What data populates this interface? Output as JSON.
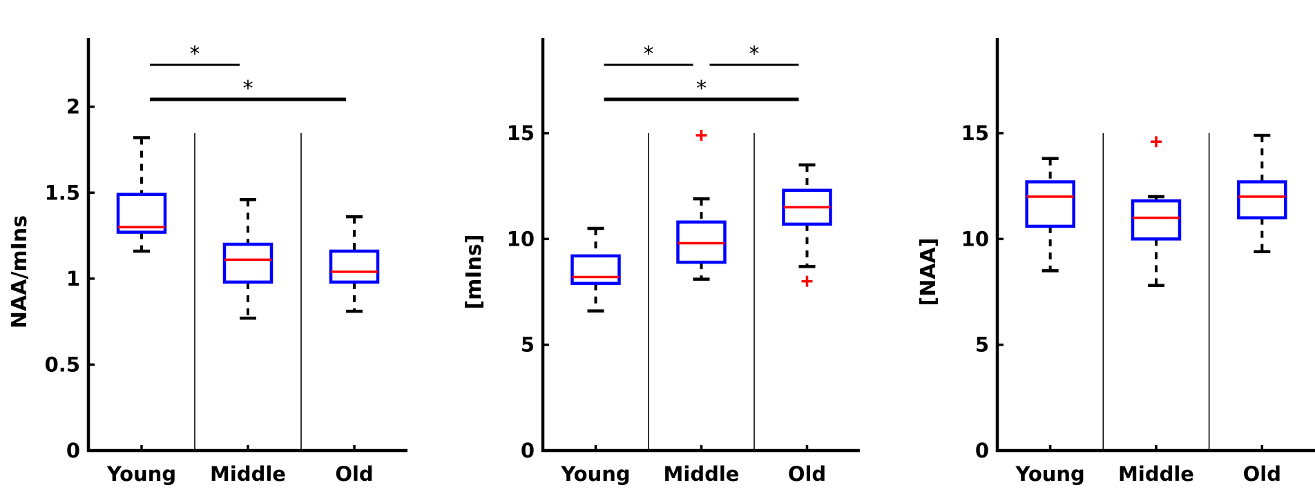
{
  "chart_data": [
    {
      "type": "box",
      "ylabel": "NAA/mIns",
      "ylim": [
        0,
        2.4
      ],
      "yticks": [
        0,
        0.5,
        1,
        1.5,
        2
      ],
      "ytick_labels": [
        "0",
        "0.5",
        "1",
        "1.5",
        "2"
      ],
      "categories": [
        "Young",
        "Middle",
        "Old"
      ],
      "boxes": [
        {
          "group": "Young",
          "whisker_low": 1.16,
          "q1": 1.27,
          "median": 1.3,
          "q3": 1.49,
          "whisker_high": 1.82,
          "outliers": []
        },
        {
          "group": "Middle",
          "whisker_low": 0.77,
          "q1": 0.98,
          "median": 1.11,
          "q3": 1.2,
          "whisker_high": 1.46,
          "outliers": []
        },
        {
          "group": "Old",
          "whisker_low": 0.81,
          "q1": 0.98,
          "median": 1.04,
          "q3": 1.16,
          "whisker_high": 1.36,
          "outliers": []
        }
      ],
      "significance": [
        {
          "from": "Young",
          "to": "Middle",
          "label": "*",
          "level": 0
        },
        {
          "from": "Young",
          "to": "Old",
          "label": "*",
          "level": 1
        }
      ]
    },
    {
      "type": "box",
      "ylabel": "[mIns]",
      "ylim": [
        0,
        19.5
      ],
      "yticks": [
        0,
        5,
        10,
        15
      ],
      "ytick_labels": [
        "0",
        "5",
        "10",
        "15"
      ],
      "categories": [
        "Young",
        "Middle",
        "Old"
      ],
      "boxes": [
        {
          "group": "Young",
          "whisker_low": 6.6,
          "q1": 7.9,
          "median": 8.2,
          "q3": 9.2,
          "whisker_high": 10.5,
          "outliers": []
        },
        {
          "group": "Middle",
          "whisker_low": 8.1,
          "q1": 8.9,
          "median": 9.8,
          "q3": 10.8,
          "whisker_high": 11.9,
          "outliers": [
            14.9
          ]
        },
        {
          "group": "Old",
          "whisker_low": 8.7,
          "q1": 10.7,
          "median": 11.5,
          "q3": 12.3,
          "whisker_high": 13.5,
          "outliers": [
            8.0
          ]
        }
      ],
      "significance": [
        {
          "from": "Young",
          "to": "Middle",
          "label": "*",
          "level": 0
        },
        {
          "from": "Middle",
          "to": "Old",
          "label": "*",
          "level": 0
        },
        {
          "from": "Young",
          "to": "Old",
          "label": "*",
          "level": 1
        }
      ]
    },
    {
      "type": "box",
      "ylabel": "[NAA]",
      "ylim": [
        0,
        19.5
      ],
      "yticks": [
        0,
        5,
        10,
        15
      ],
      "ytick_labels": [
        "0",
        "5",
        "10",
        "15"
      ],
      "categories": [
        "Young",
        "Middle",
        "Old"
      ],
      "boxes": [
        {
          "group": "Young",
          "whisker_low": 8.5,
          "q1": 10.6,
          "median": 12.0,
          "q3": 12.7,
          "whisker_high": 13.8,
          "outliers": []
        },
        {
          "group": "Middle",
          "whisker_low": 7.8,
          "q1": 10.0,
          "median": 11.0,
          "q3": 11.8,
          "whisker_high": 12.0,
          "outliers": [
            14.6
          ]
        },
        {
          "group": "Old",
          "whisker_low": 9.4,
          "q1": 11.0,
          "median": 12.0,
          "q3": 12.7,
          "whisker_high": 14.9,
          "outliers": []
        }
      ],
      "significance": []
    }
  ],
  "colors": {
    "box": "#0000ff",
    "median": "#ff0000",
    "outlier": "#ff0000",
    "whisker": "#000000",
    "axis": "#000000"
  }
}
